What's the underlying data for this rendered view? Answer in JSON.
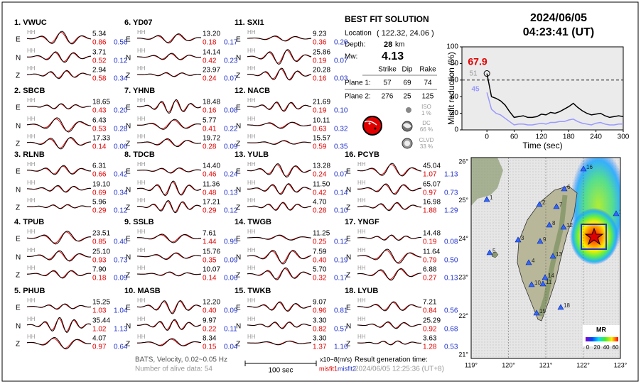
{
  "stations": [
    {
      "name": "1. VWUC",
      "rows": [
        [
          "E",
          "HH",
          "5.34",
          "0.86",
          "0.56"
        ],
        [
          "N",
          "HH",
          "3.71",
          "0.52",
          "0.12"
        ],
        [
          "Z",
          "HH",
          "2.94",
          "0.58",
          "0.34"
        ]
      ]
    },
    {
      "name": "2. SBCB",
      "rows": [
        [
          "E",
          "HH",
          "18.65",
          "0.43",
          "0.20"
        ],
        [
          "N",
          "HH",
          "6.43",
          "0.53",
          "0.28"
        ],
        [
          "Z",
          "HH",
          "17.33",
          "0.14",
          "0.06"
        ]
      ]
    },
    {
      "name": "3. RLNB",
      "rows": [
        [
          "E",
          "HH",
          "6.31",
          "0.66",
          "0.42"
        ],
        [
          "N",
          "HH",
          "19.10",
          "0.69",
          "0.34"
        ],
        [
          "Z",
          "HH",
          "5.96",
          "0.29",
          "0.12"
        ]
      ]
    },
    {
      "name": "4. TPUB",
      "rows": [
        [
          "E",
          "HH",
          "23.51",
          "0.85",
          "0.40"
        ],
        [
          "N",
          "HH",
          "25.10",
          "0.93",
          "0.73"
        ],
        [
          "Z",
          "HH",
          "7.90",
          "0.18",
          "0.09"
        ]
      ]
    },
    {
      "name": "5. PHUB",
      "rows": [
        [
          "E",
          "HH",
          "15.25",
          "1.03",
          "1.04"
        ],
        [
          "N",
          "HH",
          "35.44",
          "1.02",
          "1.13"
        ],
        [
          "Z",
          "HH",
          "4.07",
          "0.97",
          "0.64"
        ]
      ]
    },
    {
      "name": "6. YD07",
      "rows": [
        [
          "E",
          "HH",
          "13.20",
          "0.18",
          "0.17"
        ],
        [
          "N",
          "HH",
          "14.14",
          "0.42",
          "0.23"
        ],
        [
          "Z",
          "HH",
          "23.97",
          "0.24",
          "0.07"
        ]
      ]
    },
    {
      "name": "7. YHNB",
      "rows": [
        [
          "E",
          "HH",
          "18.48",
          "0.16",
          "0.08"
        ],
        [
          "N",
          "HH",
          "5.77",
          "0.41",
          "0.22"
        ],
        [
          "Z",
          "HH",
          "19.72",
          "0.28",
          "0.09"
        ]
      ]
    },
    {
      "name": "8. TDCB",
      "rows": [
        [
          "E",
          "HH",
          "14.40",
          "0.46",
          "0.24"
        ],
        [
          "N",
          "HH",
          "11.36",
          "0.48",
          "0.13"
        ],
        [
          "Z",
          "HH",
          "17.21",
          "0.29",
          "0.12"
        ]
      ]
    },
    {
      "name": "9. SSLB",
      "rows": [
        [
          "E",
          "HH",
          "7.61",
          "1.44",
          "0.95"
        ],
        [
          "N",
          "HH",
          "15.76",
          "0.35",
          "0.09"
        ],
        [
          "Z",
          "HH",
          "10.07",
          "0.14",
          "0.06"
        ]
      ]
    },
    {
      "name": "10. MASB",
      "rows": [
        [
          "E",
          "HH",
          "12.20",
          "0.40",
          "0.09"
        ],
        [
          "N",
          "HH",
          "9.97",
          "0.22",
          "0.11"
        ],
        [
          "Z",
          "HH",
          "8.34",
          "0.15",
          "0.04"
        ]
      ]
    },
    {
      "name": "11. SXI1",
      "rows": [
        [
          "E",
          "HH",
          "9.23",
          "0.36",
          "0.20"
        ],
        [
          "N",
          "HH",
          "25.86",
          "0.19",
          "0.07"
        ],
        [
          "Z",
          "HH",
          "20.28",
          "0.16",
          "0.03"
        ]
      ]
    },
    {
      "name": "12. NACB",
      "rows": [
        [
          "E",
          "HH",
          "21.69",
          "0.19",
          "0.10"
        ],
        [
          "N",
          "HH",
          "10.11",
          "0.63",
          "0.32"
        ],
        [
          "Z",
          "HH",
          "15.57",
          "0.59",
          "0.35"
        ]
      ]
    },
    {
      "name": "13. YULB",
      "rows": [
        [
          "E",
          "HH",
          "13.28",
          "0.24",
          "0.07"
        ],
        [
          "N",
          "HH",
          "11.50",
          "0.42",
          "0.14"
        ],
        [
          "Z",
          "HH",
          "4.70",
          "0.28",
          "0.10"
        ]
      ]
    },
    {
      "name": "14. TWGB",
      "rows": [
        [
          "E",
          "HH",
          "11.25",
          "0.25",
          "0.12"
        ],
        [
          "N",
          "HH",
          "7.59",
          "0.40",
          "0.19"
        ],
        [
          "Z",
          "HH",
          "5.70",
          "0.32",
          "0.17"
        ]
      ]
    },
    {
      "name": "15. TWKB",
      "rows": [
        [
          "E",
          "HH",
          "9.07",
          "0.96",
          "0.81"
        ],
        [
          "N",
          "HH",
          "3.30",
          "0.82",
          "0.57"
        ],
        [
          "Z",
          "HH",
          "3.30",
          "1.37",
          "1.16"
        ]
      ]
    },
    {
      "name": "16. PCYB",
      "rows": [
        [
          "E",
          "HH",
          "45.04",
          "1.07",
          "1.13"
        ],
        [
          "N",
          "HH",
          "65.07",
          "0.97",
          "0.73"
        ],
        [
          "Z",
          "HH",
          "16.98",
          "1.88",
          "1.29"
        ]
      ]
    },
    {
      "name": "17. YNGF",
      "rows": [
        [
          "E",
          "HH",
          "14.48",
          "0.19",
          "0.08"
        ],
        [
          "N",
          "HH",
          "11.64",
          "0.79",
          "0.50"
        ],
        [
          "Z",
          "HH",
          "6.88",
          "0.27",
          "0.13"
        ]
      ]
    },
    {
      "name": "18. LYUB",
      "rows": [
        [
          "E",
          "HH",
          "7.21",
          "0.84",
          "0.56"
        ],
        [
          "N",
          "HH",
          "25.29",
          "0.92",
          "0.68"
        ],
        [
          "Z",
          "HH",
          "3.63",
          "1.28",
          "0.53"
        ]
      ]
    }
  ],
  "solution": {
    "title": "BEST FIT SOLUTION",
    "location_label": "Location",
    "location": "( 122.32, 24.06 )",
    "depth_label": "Depth:",
    "depth": "28",
    "depth_unit": "km",
    "mw_label": "Mw:",
    "mw": "4.13",
    "headers": [
      "Strike",
      "Dip",
      "Rake"
    ],
    "planes": [
      [
        "Plane 1:",
        "57",
        "69",
        "74"
      ],
      [
        "Plane 2:",
        "276",
        "25",
        "125"
      ]
    ],
    "components": [
      [
        "ISO",
        "1 %"
      ],
      [
        "DC",
        "66 %"
      ],
      [
        "CLVD",
        "33 %"
      ]
    ]
  },
  "header": {
    "date": "2024/06/05",
    "time": "04:23:41  (UT)"
  },
  "chart_data": {
    "type": "line",
    "xlabel": "Time (sec)",
    "ylabel": "Misfit reduction (%)",
    "x": [
      0,
      10,
      20,
      30,
      40,
      50,
      60,
      70,
      80,
      90,
      100,
      110,
      120,
      130,
      140,
      150,
      160,
      170,
      180,
      190,
      200,
      210,
      220,
      230,
      240,
      250,
      260,
      270,
      280,
      290,
      300
    ],
    "series": [
      {
        "color": "#000000",
        "values": [
          67.9,
          40,
          38,
          35,
          30,
          22,
          15,
          16,
          17,
          15,
          15,
          16,
          19,
          18,
          21,
          20,
          22,
          25,
          28,
          32,
          27,
          23,
          20,
          18,
          19,
          20,
          17,
          15,
          16,
          17,
          16
        ]
      },
      {
        "color": "#9999ff",
        "values": [
          45,
          25,
          20,
          18,
          14,
          10,
          6,
          7,
          7,
          6,
          6,
          7,
          8,
          7,
          9,
          9,
          10,
          10,
          12,
          13,
          10,
          8,
          7,
          6,
          8,
          9,
          7,
          6,
          6,
          7,
          7
        ]
      }
    ],
    "xlim": [
      -55,
      300
    ],
    "ylim": [
      0,
      100
    ],
    "xticks": [
      0,
      60,
      120,
      180,
      240,
      300
    ],
    "yticks": [
      0,
      20,
      40,
      60,
      80,
      100
    ],
    "reference_line": 60,
    "annotations": [
      {
        "text": "67.9",
        "color": "#e00000"
      },
      {
        "text": "51",
        "color": "#999999"
      },
      {
        "text": "45",
        "color": "#9999ff"
      }
    ]
  },
  "map": {
    "xticks": [
      "119°",
      "120°",
      "121°",
      "122°",
      "123°"
    ],
    "yticks": [
      "26°",
      "25°",
      "24°",
      "23°",
      "22°",
      "21°"
    ],
    "station_labels": [
      "1",
      "2",
      "3",
      "4",
      "5",
      "6",
      "7",
      "8",
      "9",
      "10",
      "11",
      "12",
      "13",
      "14",
      "15",
      "16",
      "17",
      "18"
    ],
    "colorbar_title": "MR",
    "colorbar_labels": [
      "0",
      "20",
      "40",
      "60"
    ]
  },
  "footer": {
    "band": "BATS, Velocity, 0.02~0.05 Hz",
    "alive": "Number of alive data: 54",
    "scale": "100 sec",
    "unit": "x10−8(m/s)",
    "misfit1": "misfit1",
    "misfit2": "misfit2",
    "gen_label": "Result generation time:",
    "gen_time": "2024/06/05 12:25:36 (UT+8)"
  }
}
